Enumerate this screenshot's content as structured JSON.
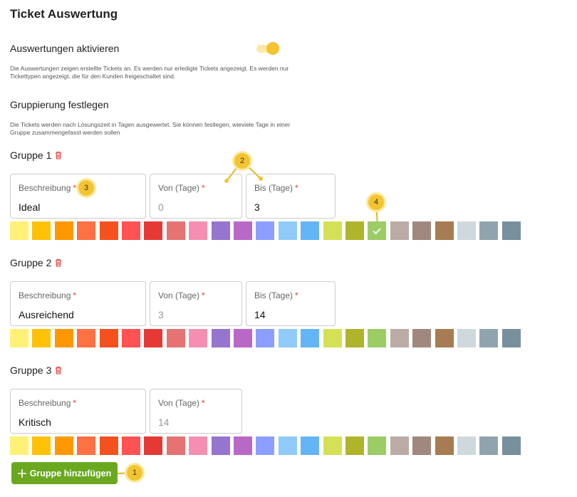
{
  "title": "Ticket Auswertung",
  "activation": {
    "label": "Auswertungen aktivieren",
    "enabled": true,
    "description": "Die Auswertungen zeigen erstellte Tickets an. Es werden nur erledigte Tickets angezeigt. Es werden nur Tickettypen angezeigt, die für den Kunden freigeschaltet sind."
  },
  "grouping": {
    "title": "Gruppierung festlegen",
    "description": "Die Tickets werden nach Lösungszeit in Tagen ausgewertet. Sie können festlegen, wieviele Tage in einer Gruppe zusammengefasst werden sollen"
  },
  "required_marker": "*",
  "colors": [
    "#fff176",
    "#ffc107",
    "#ff9800",
    "#ff7043",
    "#f4511e",
    "#ff5252",
    "#e53935",
    "#e57373",
    "#f48fb1",
    "#9575cd",
    "#ba68c8",
    "#8c9eff",
    "#90caf9",
    "#64b5f6",
    "#d4e157",
    "#afb42b",
    "#9ccc65",
    "#bcaaa4",
    "#a1887f",
    "#a67c52",
    "#cfd8dc",
    "#90a4ae",
    "#78909c"
  ],
  "groups": [
    {
      "name": "Gruppe 1",
      "selected_color": 16,
      "fields": [
        {
          "label": "Beschreibung",
          "value": "Ideal"
        },
        {
          "label": "Von (Tage)",
          "value": "0"
        },
        {
          "label": "Bis (Tage)",
          "value": "3"
        }
      ]
    },
    {
      "name": "Gruppe 2",
      "fields": [
        {
          "label": "Beschreibung",
          "value": "Ausreichend"
        },
        {
          "label": "Von (Tage)",
          "value": "3"
        },
        {
          "label": "Bis (Tage)",
          "value": "14"
        }
      ]
    },
    {
      "name": "Gruppe 3",
      "fields": [
        {
          "label": "Beschreibung",
          "value": "Kritisch"
        },
        {
          "label": "Von (Tage)",
          "value": "14"
        }
      ]
    }
  ],
  "add_button": "Gruppe hinzufügen",
  "callouts": [
    "1",
    "2",
    "3",
    "4"
  ]
}
